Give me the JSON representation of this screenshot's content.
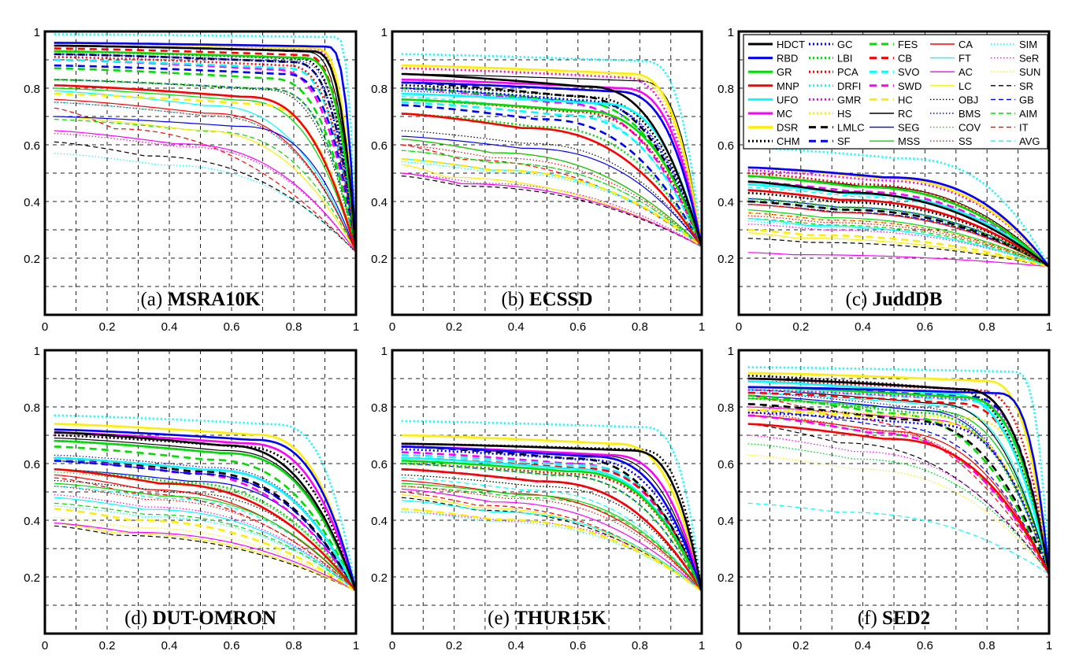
{
  "chart_data": {
    "type": "line",
    "xlim": [
      0,
      1
    ],
    "ylim": [
      0,
      1
    ],
    "grid": true,
    "legend_placement": "top-right of panel (c)",
    "x_ticks": [
      "0",
      "0.2",
      "0.4",
      "0.6",
      "0.8",
      "1"
    ],
    "y_ticks": [
      "",
      "0.2",
      "0.4",
      "0.6",
      "0.8",
      "1"
    ],
    "methods": [
      {
        "name": "HDCT",
        "color": "#000000",
        "style": "solid",
        "width": "thick"
      },
      {
        "name": "RBD",
        "color": "#0000ff",
        "style": "solid",
        "width": "thick"
      },
      {
        "name": "GR",
        "color": "#00dd00",
        "style": "solid",
        "width": "thick"
      },
      {
        "name": "MNP",
        "color": "#ff0000",
        "style": "solid",
        "width": "thick"
      },
      {
        "name": "UFO",
        "color": "#00ffff",
        "style": "solid",
        "width": "thick"
      },
      {
        "name": "MC",
        "color": "#ff00ff",
        "style": "solid",
        "width": "thick"
      },
      {
        "name": "DSR",
        "color": "#ffee00",
        "style": "solid",
        "width": "thick"
      },
      {
        "name": "CHM",
        "color": "#000000",
        "style": "dotted",
        "width": "thick"
      },
      {
        "name": "GC",
        "color": "#0000ff",
        "style": "dotted",
        "width": "thick"
      },
      {
        "name": "LBI",
        "color": "#00dd00",
        "style": "dotted",
        "width": "thick"
      },
      {
        "name": "PCA",
        "color": "#ff0000",
        "style": "dotted",
        "width": "thick"
      },
      {
        "name": "DRFI",
        "color": "#00ffff",
        "style": "dotted",
        "width": "thick"
      },
      {
        "name": "GMR",
        "color": "#ff00ff",
        "style": "dotted",
        "width": "thick"
      },
      {
        "name": "HS",
        "color": "#ffee00",
        "style": "dotted",
        "width": "thick"
      },
      {
        "name": "LMLC",
        "color": "#000000",
        "style": "dashed",
        "width": "thick"
      },
      {
        "name": "SF",
        "color": "#0000ff",
        "style": "dashed",
        "width": "thick"
      },
      {
        "name": "FES",
        "color": "#00dd00",
        "style": "dashed",
        "width": "thick"
      },
      {
        "name": "CB",
        "color": "#ff0000",
        "style": "dashed",
        "width": "thick"
      },
      {
        "name": "SVO",
        "color": "#00ffff",
        "style": "dashed",
        "width": "thick"
      },
      {
        "name": "SWD",
        "color": "#ff00ff",
        "style": "dashed",
        "width": "thick"
      },
      {
        "name": "HC",
        "color": "#ffee00",
        "style": "dashed",
        "width": "thick"
      },
      {
        "name": "RC",
        "color": "#000000",
        "style": "solid",
        "width": "thin"
      },
      {
        "name": "SEG",
        "color": "#0000ff",
        "style": "solid",
        "width": "thin"
      },
      {
        "name": "MSS",
        "color": "#00dd00",
        "style": "solid",
        "width": "thin"
      },
      {
        "name": "CA",
        "color": "#ff0000",
        "style": "solid",
        "width": "thin"
      },
      {
        "name": "FT",
        "color": "#00ffff",
        "style": "solid",
        "width": "thin"
      },
      {
        "name": "AC",
        "color": "#ff00ff",
        "style": "solid",
        "width": "thin"
      },
      {
        "name": "LC",
        "color": "#ffee00",
        "style": "solid",
        "width": "thin"
      },
      {
        "name": "OBJ",
        "color": "#000000",
        "style": "dotted",
        "width": "thin"
      },
      {
        "name": "BMS",
        "color": "#0000ff",
        "style": "dotted",
        "width": "thin"
      },
      {
        "name": "COV",
        "color": "#00dd00",
        "style": "dotted",
        "width": "thin"
      },
      {
        "name": "SS",
        "color": "#ff0000",
        "style": "dotted",
        "width": "thin"
      },
      {
        "name": "SIM",
        "color": "#00ffff",
        "style": "dotted",
        "width": "thin"
      },
      {
        "name": "SeR",
        "color": "#ff00ff",
        "style": "dotted",
        "width": "thin"
      },
      {
        "name": "SUN",
        "color": "#ffee00",
        "style": "dotted",
        "width": "thin"
      },
      {
        "name": "SR",
        "color": "#000000",
        "style": "dashed",
        "width": "thin"
      },
      {
        "name": "GB",
        "color": "#0000ff",
        "style": "dashed",
        "width": "thin"
      },
      {
        "name": "AIM",
        "color": "#00dd00",
        "style": "dashed",
        "width": "thin"
      },
      {
        "name": "IT",
        "color": "#ff0000",
        "style": "dashed",
        "width": "thin"
      },
      {
        "name": "AVG",
        "color": "#00ffff",
        "style": "dashed",
        "width": "thin"
      }
    ],
    "panels": [
      {
        "label": "(a)",
        "dataset": "MSRA10K",
        "end_precision": 0.22,
        "start_precision": {
          "HDCT": 0.95,
          "RBD": 0.96,
          "GR": 0.93,
          "MNP": 0.81,
          "UFO": 0.95,
          "MC": 0.95,
          "DSR": 0.96,
          "CHM": 0.93,
          "GC": 0.92,
          "LBI": 0.83,
          "PCA": 0.91,
          "DRFI": 0.99,
          "GMR": 0.96,
          "HS": 0.93,
          "LMLC": 0.92,
          "SF": 0.88,
          "FES": 0.87,
          "CB": 0.94,
          "SVO": 0.9,
          "SWD": 0.9,
          "HC": 0.78,
          "RC": 0.95,
          "SEG": 0.7,
          "MSS": 0.8,
          "CA": 0.76,
          "FT": 0.79,
          "AC": 0.65,
          "LC": 0.7,
          "OBJ": 0.83,
          "BMS": 0.92,
          "COV": 0.8,
          "SS": 0.75,
          "SIM": 0.57,
          "SeR": 0.64,
          "SUN": 0.64,
          "SR": 0.61,
          "GB": 0.83,
          "AIM": 0.69,
          "IT": 0.73,
          "AVG": 0.75
        },
        "knee": {
          "HDCT": 0.85,
          "RBD": 0.9,
          "GR": 0.82,
          "MNP": 0.62,
          "UFO": 0.85,
          "MC": 0.85,
          "DSR": 0.86,
          "CHM": 0.8,
          "GC": 0.78,
          "LBI": 0.7,
          "PCA": 0.76,
          "DRFI": 0.93,
          "GMR": 0.85,
          "HS": 0.82,
          "LMLC": 0.78,
          "SF": 0.75,
          "FES": 0.7,
          "CB": 0.82,
          "SVO": 0.76,
          "SWD": 0.72,
          "HC": 0.65,
          "RC": 0.83,
          "SEG": 0.6,
          "MSS": 0.6,
          "CA": 0.5,
          "FT": 0.5,
          "AC": 0.4,
          "LC": 0.45,
          "OBJ": 0.68,
          "BMS": 0.8,
          "COV": 0.6,
          "SS": 0.5,
          "SIM": 0.35,
          "SeR": 0.4,
          "SUN": 0.4,
          "SR": 0.3,
          "GB": 0.7,
          "AIM": 0.5,
          "IT": 0.2,
          "AVG": 0.5
        }
      },
      {
        "label": "(b)",
        "dataset": "ECSSD",
        "end_precision": 0.24,
        "start_precision": {
          "HDCT": 0.85,
          "RBD": 0.82,
          "GR": 0.76,
          "MNP": 0.71,
          "UFO": 0.78,
          "MC": 0.83,
          "DSR": 0.88,
          "CHM": 0.81,
          "GC": 0.8,
          "LBI": 0.71,
          "PCA": 0.76,
          "DRFI": 0.92,
          "GMR": 0.87,
          "HS": 0.87,
          "LMLC": 0.82,
          "SF": 0.74,
          "FES": 0.8,
          "CB": 0.82,
          "SVO": 0.75,
          "SWD": 0.8,
          "HC": 0.55,
          "RC": 0.85,
          "SEG": 0.63,
          "MSS": 0.62,
          "CA": 0.62,
          "FT": 0.55,
          "AC": 0.5,
          "LC": 0.53,
          "OBJ": 0.65,
          "BMS": 0.79,
          "COV": 0.58,
          "SS": 0.6,
          "SIM": 0.54,
          "SeR": 0.5,
          "SUN": 0.5,
          "SR": 0.49,
          "GB": 0.8,
          "AIM": 0.58,
          "IT": 0.6,
          "AVG": 0.77
        },
        "knee": {
          "HDCT": 0.6,
          "RBD": 0.7,
          "GR": 0.58,
          "MNP": 0.4,
          "UFO": 0.65,
          "MC": 0.72,
          "DSR": 0.75,
          "CHM": 0.6,
          "GC": 0.58,
          "LBI": 0.45,
          "PCA": 0.55,
          "DRFI": 0.8,
          "GMR": 0.72,
          "HS": 0.74,
          "LMLC": 0.55,
          "SF": 0.45,
          "FES": 0.55,
          "CB": 0.7,
          "SVO": 0.52,
          "SWD": 0.5,
          "HC": 0.3,
          "RC": 0.78,
          "SEG": 0.4,
          "MSS": 0.3,
          "CA": 0.3,
          "FT": 0.3,
          "AC": 0.2,
          "LC": 0.15,
          "OBJ": 0.4,
          "BMS": 0.6,
          "COV": 0.3,
          "SS": 0.3,
          "SIM": 0.3,
          "SeR": 0.25,
          "SUN": 0.25,
          "SR": 0.2,
          "GB": 0.55,
          "AIM": 0.3,
          "IT": 0.2,
          "AVG": 0.5
        }
      },
      {
        "label": "(c)",
        "dataset": "JuddDB",
        "end_precision": 0.17,
        "start_precision": {
          "HDCT": 0.47,
          "RBD": 0.52,
          "GR": 0.49,
          "MNP": 0.44,
          "UFO": 0.46,
          "MC": 0.52,
          "DSR": 0.52,
          "CHM": 0.43,
          "GC": 0.44,
          "LBI": 0.41,
          "PCA": 0.5,
          "DRFI": 0.59,
          "GMR": 0.51,
          "HS": 0.52,
          "LMLC": 0.4,
          "SF": 0.4,
          "FES": 0.49,
          "CB": 0.49,
          "SVO": 0.46,
          "SWD": 0.47,
          "HC": 0.3,
          "RC": 0.49,
          "SEG": 0.41,
          "MSS": 0.37,
          "CA": 0.39,
          "FT": 0.34,
          "AC": 0.22,
          "LC": 0.29,
          "OBJ": 0.39,
          "BMS": 0.46,
          "COV": 0.4,
          "SS": 0.35,
          "SIM": 0.33,
          "SeR": 0.32,
          "SUN": 0.36,
          "SR": 0.27,
          "GB": 0.39,
          "AIM": 0.34,
          "IT": 0.36,
          "AVG": 0.45
        },
        "knee": {
          "HDCT": 0.3,
          "RBD": 0.45,
          "GR": 0.35,
          "MNP": 0.3,
          "UFO": 0.35,
          "MC": 0.45,
          "DSR": 0.42,
          "CHM": 0.3,
          "GC": 0.3,
          "LBI": 0.3,
          "PCA": 0.35,
          "DRFI": 0.5,
          "GMR": 0.42,
          "HS": 0.42,
          "LMLC": 0.3,
          "SF": 0.3,
          "FES": 0.35,
          "CB": 0.35,
          "SVO": 0.35,
          "SWD": 0.35,
          "HC": 0.2,
          "RC": 0.38,
          "SEG": 0.3,
          "MSS": 0.25,
          "CA": 0.28,
          "FT": 0.2,
          "AC": 0.15,
          "LC": 0.15,
          "OBJ": 0.3,
          "BMS": 0.35,
          "COV": 0.3,
          "SS": 0.25,
          "SIM": 0.25,
          "SeR": 0.25,
          "SUN": 0.25,
          "SR": 0.2,
          "GB": 0.3,
          "AIM": 0.25,
          "IT": 0.25,
          "AVG": 0.35
        }
      },
      {
        "label": "(d)",
        "dataset": "DUT-OMRON",
        "end_precision": 0.15,
        "start_precision": {
          "HDCT": 0.71,
          "RBD": 0.72,
          "GR": 0.68,
          "MNP": 0.58,
          "UFO": 0.62,
          "MC": 0.71,
          "DSR": 0.74,
          "CHM": 0.7,
          "GC": 0.68,
          "LBI": 0.58,
          "PCA": 0.62,
          "DRFI": 0.77,
          "GMR": 0.7,
          "HS": 0.71,
          "LMLC": 0.62,
          "SF": 0.61,
          "FES": 0.66,
          "CB": 0.62,
          "SVO": 0.62,
          "SWD": 0.62,
          "HC": 0.44,
          "RC": 0.69,
          "SEG": 0.58,
          "MSS": 0.53,
          "CA": 0.56,
          "FT": 0.48,
          "AC": 0.39,
          "LC": 0.39,
          "OBJ": 0.54,
          "BMS": 0.63,
          "COV": 0.57,
          "SS": 0.52,
          "SIM": 0.45,
          "SeR": 0.49,
          "SUN": 0.41,
          "SR": 0.38,
          "GB": 0.61,
          "AIM": 0.46,
          "IT": 0.55,
          "AVG": 0.52
        },
        "knee": {
          "HDCT": 0.55,
          "RBD": 0.65,
          "GR": 0.55,
          "MNP": 0.35,
          "UFO": 0.5,
          "MC": 0.62,
          "DSR": 0.65,
          "CHM": 0.6,
          "GC": 0.55,
          "LBI": 0.4,
          "PCA": 0.5,
          "DRFI": 0.72,
          "GMR": 0.6,
          "HS": 0.62,
          "LMLC": 0.45,
          "SF": 0.45,
          "FES": 0.5,
          "CB": 0.5,
          "SVO": 0.5,
          "SWD": 0.4,
          "HC": 0.25,
          "RC": 0.55,
          "SEG": 0.45,
          "MSS": 0.35,
          "CA": 0.3,
          "FT": 0.3,
          "AC": 0.25,
          "LC": 0.2,
          "OBJ": 0.4,
          "BMS": 0.5,
          "COV": 0.4,
          "SS": 0.3,
          "SIM": 0.3,
          "SeR": 0.3,
          "SUN": 0.25,
          "SR": 0.2,
          "GB": 0.45,
          "AIM": 0.3,
          "IT": 0.25,
          "AVG": 0.35
        }
      },
      {
        "label": "(e)",
        "dataset": "THUR15K",
        "end_precision": 0.15,
        "start_precision": {
          "HDCT": 0.67,
          "RBD": 0.66,
          "GR": 0.61,
          "MNP": 0.58,
          "UFO": 0.62,
          "MC": 0.66,
          "DSR": 0.7,
          "CHM": 0.67,
          "GC": 0.65,
          "LBI": 0.6,
          "PCA": 0.6,
          "DRFI": 0.75,
          "GMR": 0.66,
          "HS": 0.66,
          "LMLC": 0.66,
          "SF": 0.58,
          "FES": 0.66,
          "CB": 0.62,
          "SVO": 0.63,
          "SWD": 0.64,
          "HC": 0.44,
          "RC": 0.66,
          "SEG": 0.58,
          "MSS": 0.53,
          "CA": 0.54,
          "FT": 0.47,
          "AC": 0.51,
          "LC": 0.49,
          "OBJ": 0.56,
          "BMS": 0.62,
          "COV": 0.56,
          "SS": 0.52,
          "SIM": 0.43,
          "SeR": 0.43,
          "SUN": 0.44,
          "SR": 0.48,
          "GB": 0.6,
          "AIM": 0.52,
          "IT": 0.5,
          "AVG": 0.55
        },
        "knee": {
          "HDCT": 0.75,
          "RBD": 0.62,
          "GR": 0.55,
          "MNP": 0.45,
          "UFO": 0.55,
          "MC": 0.68,
          "DSR": 0.7,
          "CHM": 0.78,
          "GC": 0.6,
          "LBI": 0.5,
          "PCA": 0.55,
          "DRFI": 0.8,
          "GMR": 0.62,
          "HS": 0.62,
          "LMLC": 0.55,
          "SF": 0.45,
          "FES": 0.55,
          "CB": 0.58,
          "SVO": 0.58,
          "SWD": 0.55,
          "HC": 0.3,
          "RC": 0.65,
          "SEG": 0.45,
          "MSS": 0.4,
          "CA": 0.35,
          "FT": 0.3,
          "AC": 0.3,
          "LC": 0.25,
          "OBJ": 0.45,
          "BMS": 0.55,
          "COV": 0.45,
          "SS": 0.35,
          "SIM": 0.3,
          "SeR": 0.35,
          "SUN": 0.3,
          "SR": 0.25,
          "GB": 0.5,
          "AIM": 0.4,
          "IT": 0.25,
          "AVG": 0.4
        }
      },
      {
        "label": "(f)",
        "dataset": "SED2",
        "end_precision": 0.21,
        "start_precision": {
          "HDCT": 0.9,
          "RBD": 0.87,
          "GR": 0.87,
          "MNP": 0.74,
          "UFO": 0.89,
          "MC": 0.9,
          "DSR": 0.92,
          "CHM": 0.91,
          "GC": 0.78,
          "LBI": 0.83,
          "PCA": 0.89,
          "DRFI": 0.94,
          "GMR": 0.86,
          "HS": 0.79,
          "LMLC": 0.81,
          "SF": 0.87,
          "FES": 0.84,
          "CB": 0.85,
          "SVO": 0.86,
          "SWD": 0.77,
          "HC": 0.79,
          "RC": 0.86,
          "SEG": 0.84,
          "MSS": 0.83,
          "CA": 0.77,
          "FT": 0.85,
          "AC": 0.8,
          "LC": 0.8,
          "OBJ": 0.83,
          "BMS": 0.85,
          "COV": 0.67,
          "SS": 0.78,
          "SIM": 0.67,
          "SeR": 0.7,
          "SUN": 0.63,
          "SR": 0.74,
          "GB": 0.79,
          "AIM": 0.77,
          "IT": 0.84,
          "AVG": 0.46
        },
        "knee": {
          "HDCT": 0.7,
          "RBD": 0.82,
          "GR": 0.7,
          "MNP": 0.45,
          "UFO": 0.65,
          "MC": 0.7,
          "DSR": 0.78,
          "CHM": 0.65,
          "GC": 0.6,
          "LBI": 0.55,
          "PCA": 0.75,
          "DRFI": 0.88,
          "GMR": 0.72,
          "HS": 0.72,
          "LMLC": 0.5,
          "SF": 0.72,
          "FES": 0.45,
          "CB": 0.68,
          "SVO": 0.7,
          "SWD": 0.4,
          "HC": 0.6,
          "RC": 0.6,
          "SEG": 0.55,
          "MSS": 0.6,
          "CA": 0.45,
          "FT": 0.62,
          "AC": 0.58,
          "LC": 0.58,
          "OBJ": 0.6,
          "BMS": 0.55,
          "COV": 0.35,
          "SS": 0.4,
          "SIM": 0.35,
          "SeR": 0.35,
          "SUN": 0.35,
          "SR": 0.3,
          "GB": 0.45,
          "AIM": 0.4,
          "IT": 0.3,
          "AVG": 0.3
        }
      }
    ]
  }
}
